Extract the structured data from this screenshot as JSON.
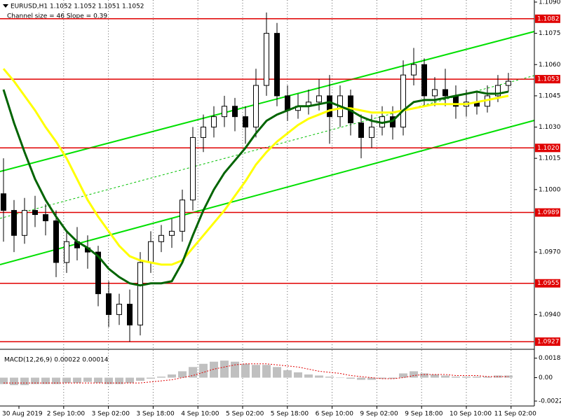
{
  "chart_data": [
    {
      "type": "candlestick",
      "title": "EURUSD,H1  1.1052 1.1052 1.1051 1.1052",
      "annotation": "Channel size = 46 Slope = 0.39",
      "open": [
        1.0998,
        1.099,
        1.0978,
        1.099,
        1.0988,
        1.0985,
        1.0965,
        1.0975,
        1.0972,
        1.097,
        1.095,
        1.094,
        1.0945,
        1.0935,
        1.0965,
        1.0975,
        1.0978,
        1.098,
        1.0995,
        1.1025,
        1.103,
        1.1035,
        1.104,
        1.1035,
        1.103,
        1.105,
        1.1075,
        1.1045,
        1.1038,
        1.104,
        1.1042,
        1.1045,
        1.1035,
        1.1045,
        1.1032,
        1.1025,
        1.103,
        1.1035,
        1.103,
        1.1055,
        1.106,
        1.1045,
        1.1048,
        1.1045,
        1.104,
        1.1042,
        1.104,
        1.1045,
        1.105
      ],
      "high": [
        1.1015,
        1.0995,
        1.0996,
        1.0997,
        1.0993,
        1.099,
        1.098,
        1.0982,
        1.0978,
        1.0973,
        1.0956,
        1.095,
        1.0952,
        1.097,
        1.098,
        1.0983,
        1.0986,
        1.1,
        1.103,
        1.1036,
        1.104,
        1.1045,
        1.1044,
        1.104,
        1.1058,
        1.1085,
        1.108,
        1.105,
        1.1046,
        1.1048,
        1.1053,
        1.1055,
        1.105,
        1.1048,
        1.1036,
        1.1036,
        1.104,
        1.104,
        1.1062,
        1.1068,
        1.1063,
        1.1054,
        1.1058,
        1.105,
        1.1048,
        1.1047,
        1.105,
        1.1055,
        1.1056
      ],
      "low": [
        1.0975,
        1.097,
        1.0974,
        1.0982,
        1.0978,
        1.0958,
        1.096,
        1.0966,
        1.0962,
        1.0944,
        1.0934,
        1.0935,
        1.0927,
        1.093,
        1.096,
        1.097,
        1.0972,
        1.0975,
        1.099,
        1.1018,
        1.1025,
        1.103,
        1.1028,
        1.1022,
        1.1025,
        1.1045,
        1.104,
        1.1033,
        1.1034,
        1.1036,
        1.1038,
        1.1022,
        1.103,
        1.1026,
        1.1015,
        1.102,
        1.1026,
        1.1024,
        1.1026,
        1.105,
        1.104,
        1.104,
        1.104,
        1.1034,
        1.1035,
        1.1036,
        1.1037,
        1.1042,
        1.1047
      ],
      "close": [
        1.099,
        1.0978,
        1.099,
        1.0988,
        1.0985,
        1.0965,
        1.0975,
        1.0972,
        1.097,
        1.095,
        1.094,
        1.0945,
        1.0935,
        1.0965,
        1.0975,
        1.0978,
        1.098,
        1.0995,
        1.1025,
        1.103,
        1.1035,
        1.104,
        1.1035,
        1.103,
        1.105,
        1.1075,
        1.1045,
        1.1038,
        1.104,
        1.1042,
        1.1045,
        1.1035,
        1.1045,
        1.1032,
        1.1025,
        1.103,
        1.1035,
        1.103,
        1.1055,
        1.106,
        1.1045,
        1.1048,
        1.1045,
        1.104,
        1.1042,
        1.104,
        1.1045,
        1.105,
        1.1052
      ],
      "moving_averages": [
        {
          "color": "#ffff00",
          "values": [
            1.1058,
            1.1052,
            1.1045,
            1.1038,
            1.103,
            1.1023,
            1.1015,
            1.1005,
            1.0995,
            1.0987,
            1.098,
            1.0973,
            1.0968,
            1.0966,
            1.0965,
            1.0964,
            1.0964,
            1.0966,
            1.0972,
            1.0978,
            1.0984,
            1.099,
            1.0997,
            1.1004,
            1.1012,
            1.1018,
            1.1023,
            1.1027,
            1.1031,
            1.1034,
            1.1036,
            1.1038,
            1.1039,
            1.1039,
            1.1038,
            1.1037,
            1.1037,
            1.1037,
            1.1038,
            1.1039,
            1.104,
            1.1041,
            1.1041,
            1.1041,
            1.1041,
            1.1042,
            1.1043,
            1.1044,
            1.1045
          ]
        },
        {
          "color": "#006400",
          "values": [
            1.1048,
            1.1032,
            1.1018,
            1.1005,
            1.0995,
            1.0987,
            1.098,
            1.0975,
            1.0972,
            1.0968,
            1.0962,
            1.0958,
            1.0955,
            1.0954,
            1.0955,
            1.0955,
            1.0956,
            1.0965,
            1.0978,
            1.099,
            1.1,
            1.1008,
            1.1014,
            1.102,
            1.1027,
            1.1033,
            1.1036,
            1.1038,
            1.104,
            1.104,
            1.1041,
            1.1042,
            1.104,
            1.1038,
            1.1035,
            1.1033,
            1.1032,
            1.1033,
            1.1038,
            1.1042,
            1.1043,
            1.1043,
            1.1044,
            1.1045,
            1.1046,
            1.1047,
            1.1046,
            1.1046,
            1.1047
          ]
        }
      ],
      "levels": [
        1.1082,
        1.1053,
        {
          "value": 1.102,
          "label": "1.1020"
        },
        1.0989,
        1.0955,
        1.0927
      ],
      "level_color": "#e00000",
      "ylim": [
        1.0924,
        1.1091
      ],
      "yticks": [
        {
          "value": 1.109,
          "label": "1.1090"
        },
        1.1075,
        {
          "value": 1.106,
          "label": "1.1060"
        },
        1.1045,
        {
          "value": 1.103,
          "label": "1.1030"
        },
        1.1015,
        {
          "value": 1.1,
          "label": "1.1000"
        },
        {
          "value": 1.097,
          "label": "1.0970"
        },
        {
          "value": 1.094,
          "label": "1.0940"
        }
      ]
    },
    {
      "type": "bar",
      "title": "MACD(12,26,9) 0.00022 0.00014",
      "color": "#c0c0c0",
      "signal_color": "#e00000",
      "values": [
        -0.0006,
        -0.0007,
        -0.0007,
        -0.0006,
        -0.0006,
        -0.0006,
        -0.0005,
        -0.0005,
        -0.0004,
        -0.0005,
        -0.0006,
        -0.0006,
        -0.0005,
        -0.0003,
        -0.0001,
        0.0001,
        0.0003,
        0.0006,
        0.001,
        0.0013,
        0.0015,
        0.0016,
        0.0015,
        0.0013,
        0.0012,
        0.0012,
        0.001,
        0.0007,
        0.0005,
        0.0003,
        0.0002,
        0.0001,
        0.0,
        -0.0001,
        -0.0002,
        -0.0002,
        -0.0001,
        -0.0001,
        0.0004,
        0.0006,
        0.0004,
        0.0003,
        0.0002,
        0.0001,
        0.0001,
        0.0001,
        0.0001,
        0.0002,
        0.0002
      ],
      "signal": [
        -0.0005,
        -0.0005,
        -0.0005,
        -0.0005,
        -0.0005,
        -0.0005,
        -0.0005,
        -0.0005,
        -0.0005,
        -0.0005,
        -0.0005,
        -0.0005,
        -0.0005,
        -0.0005,
        -0.0004,
        -0.0003,
        -0.0002,
        0.0,
        0.0002,
        0.0005,
        0.0008,
        0.001,
        0.0012,
        0.0013,
        0.0013,
        0.0013,
        0.0012,
        0.0011,
        0.001,
        0.0008,
        0.0006,
        0.0005,
        0.0004,
        0.0002,
        0.0001,
        0.0,
        -0.0001,
        -0.0001,
        0.0,
        0.0002,
        0.0003,
        0.0003,
        0.0003,
        0.0002,
        0.0002,
        0.0002,
        0.0001,
        0.0001,
        0.0001
      ],
      "ylim": [
        -0.00253,
        0.0024
      ],
      "yticks": [
        0.00183,
        {
          "value": 0,
          "label": "0.00"
        },
        -0.0022
      ],
      "time_labels": [
        "30 Aug 2019",
        "2 Sep 10:00",
        "3 Sep 02:00",
        "3 Sep 18:00",
        "4 Sep 10:00",
        "5 Sep 02:00",
        "5 Sep 18:00",
        "6 Sep 10:00",
        "9 Sep 02:00",
        "9 Sep 18:00",
        "10 Sep 10:00",
        "11 Sep 02:00"
      ]
    }
  ]
}
